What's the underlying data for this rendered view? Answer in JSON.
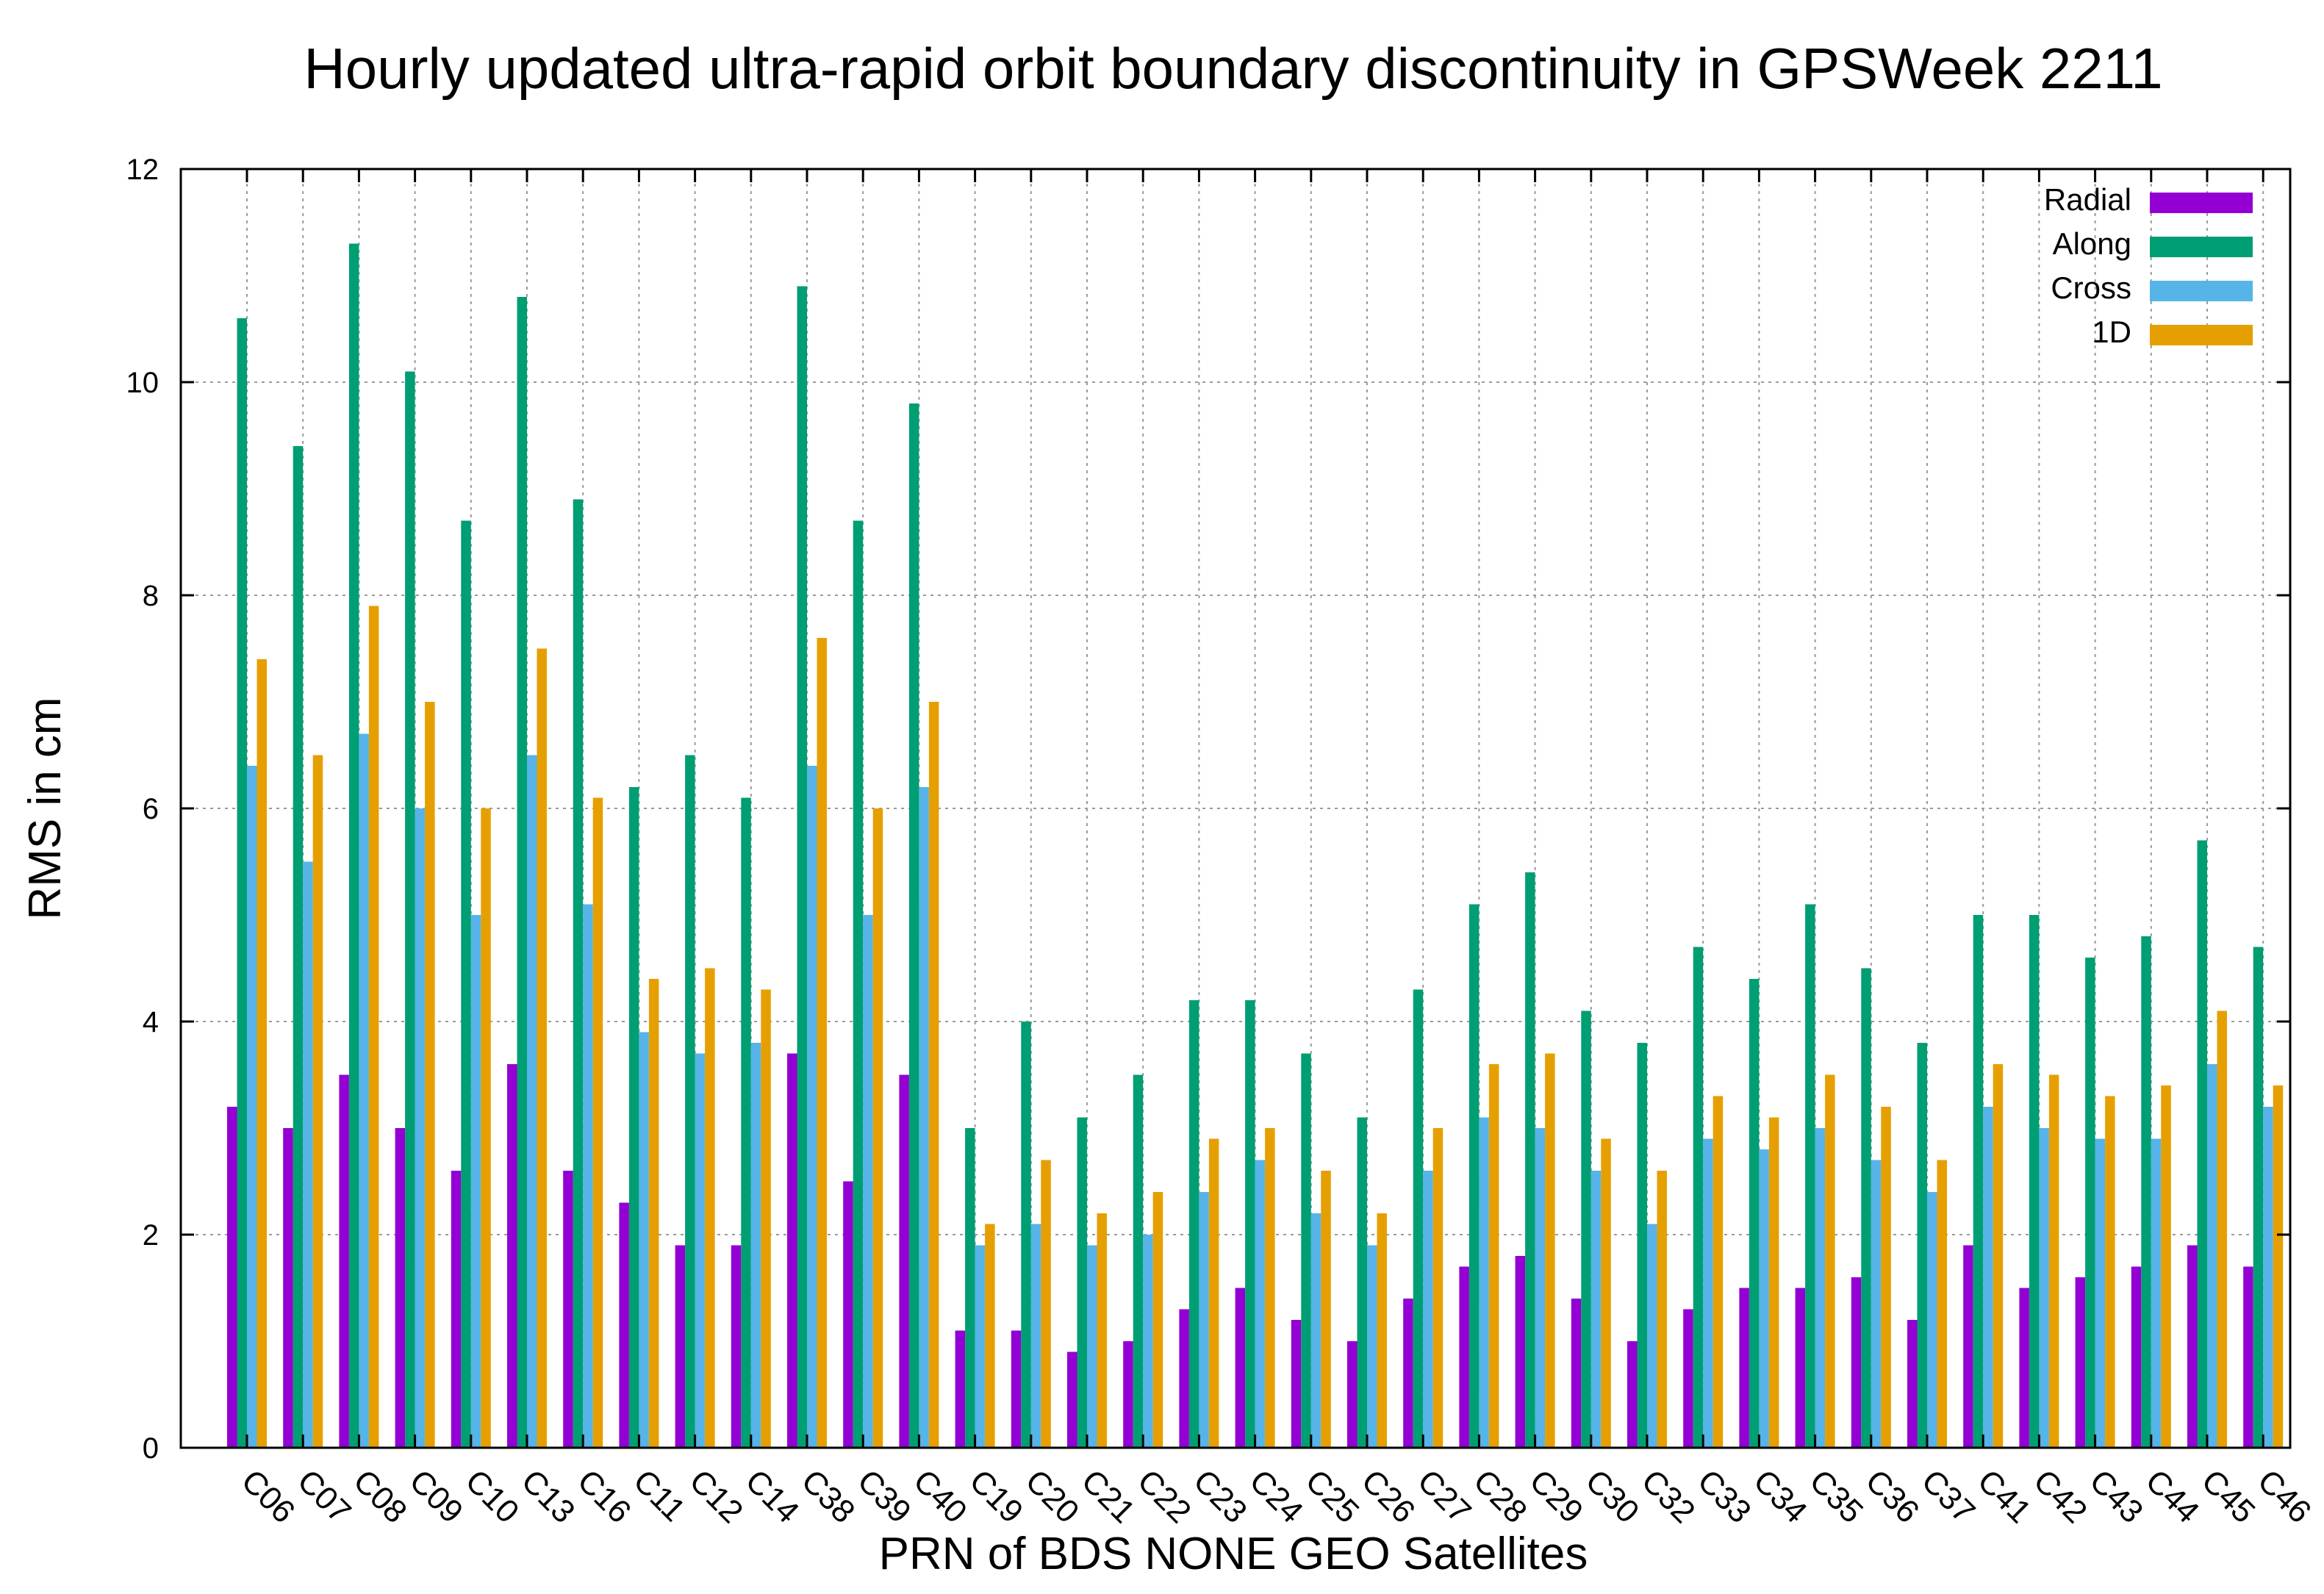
{
  "chart_data": {
    "type": "bar",
    "title": "Hourly updated ultra-rapid orbit boundary discontinuity in GPSWeek 2211",
    "xlabel": "PRN of BDS NONE GEO Satellites",
    "ylabel": "RMS in cm",
    "ylim": [
      0,
      12
    ],
    "yticks": [
      0,
      2,
      4,
      6,
      8,
      10,
      12
    ],
    "grid": true,
    "legend_position": "top-right",
    "categories": [
      "C06",
      "C07",
      "C08",
      "C09",
      "C10",
      "C13",
      "C16",
      "C11",
      "C12",
      "C14",
      "C38",
      "C39",
      "C40",
      "C19",
      "C20",
      "C21",
      "C22",
      "C23",
      "C24",
      "C25",
      "C26",
      "C27",
      "C28",
      "C29",
      "C30",
      "C32",
      "C33",
      "C34",
      "C35",
      "C36",
      "C37",
      "C41",
      "C42",
      "C43",
      "C44",
      "C45",
      "C46"
    ],
    "series": [
      {
        "name": "Radial",
        "color": "#9400d3",
        "values": [
          3.2,
          3.0,
          3.5,
          3.0,
          2.6,
          3.6,
          2.6,
          2.3,
          1.9,
          1.9,
          3.7,
          2.5,
          3.5,
          1.1,
          1.1,
          0.9,
          1.0,
          1.3,
          1.5,
          1.2,
          1.0,
          1.4,
          1.7,
          1.8,
          1.4,
          1.0,
          1.3,
          1.5,
          1.5,
          1.6,
          1.2,
          1.9,
          1.5,
          1.6,
          1.7,
          1.9,
          1.7
        ]
      },
      {
        "name": "Along",
        "color": "#009e73",
        "values": [
          10.6,
          9.4,
          11.3,
          10.1,
          8.7,
          10.8,
          8.9,
          6.2,
          6.5,
          6.1,
          10.9,
          8.7,
          9.8,
          3.0,
          4.0,
          3.1,
          3.5,
          4.2,
          4.2,
          3.7,
          3.1,
          4.3,
          5.1,
          5.4,
          4.1,
          3.8,
          4.7,
          4.4,
          5.1,
          4.5,
          3.8,
          5.0,
          5.0,
          4.6,
          4.8,
          5.7,
          4.7
        ]
      },
      {
        "name": "Cross",
        "color": "#56b4e9",
        "values": [
          6.4,
          5.5,
          6.7,
          6.0,
          5.0,
          6.5,
          5.1,
          3.9,
          3.7,
          3.8,
          6.4,
          5.0,
          6.2,
          1.9,
          2.1,
          1.9,
          2.0,
          2.4,
          2.7,
          2.2,
          1.9,
          2.6,
          3.1,
          3.0,
          2.6,
          2.1,
          2.9,
          2.8,
          3.0,
          2.7,
          2.4,
          3.2,
          3.0,
          2.9,
          2.9,
          3.6,
          3.2
        ]
      },
      {
        "name": "1D",
        "color": "#e69f00",
        "values": [
          7.4,
          6.5,
          7.9,
          7.0,
          6.0,
          7.5,
          6.1,
          4.4,
          4.5,
          4.3,
          7.6,
          6.0,
          7.0,
          2.1,
          2.7,
          2.2,
          2.4,
          2.9,
          3.0,
          2.6,
          2.2,
          3.0,
          3.6,
          3.7,
          2.9,
          2.6,
          3.3,
          3.1,
          3.5,
          3.2,
          2.7,
          3.6,
          3.5,
          3.3,
          3.4,
          4.1,
          3.4
        ]
      }
    ]
  }
}
